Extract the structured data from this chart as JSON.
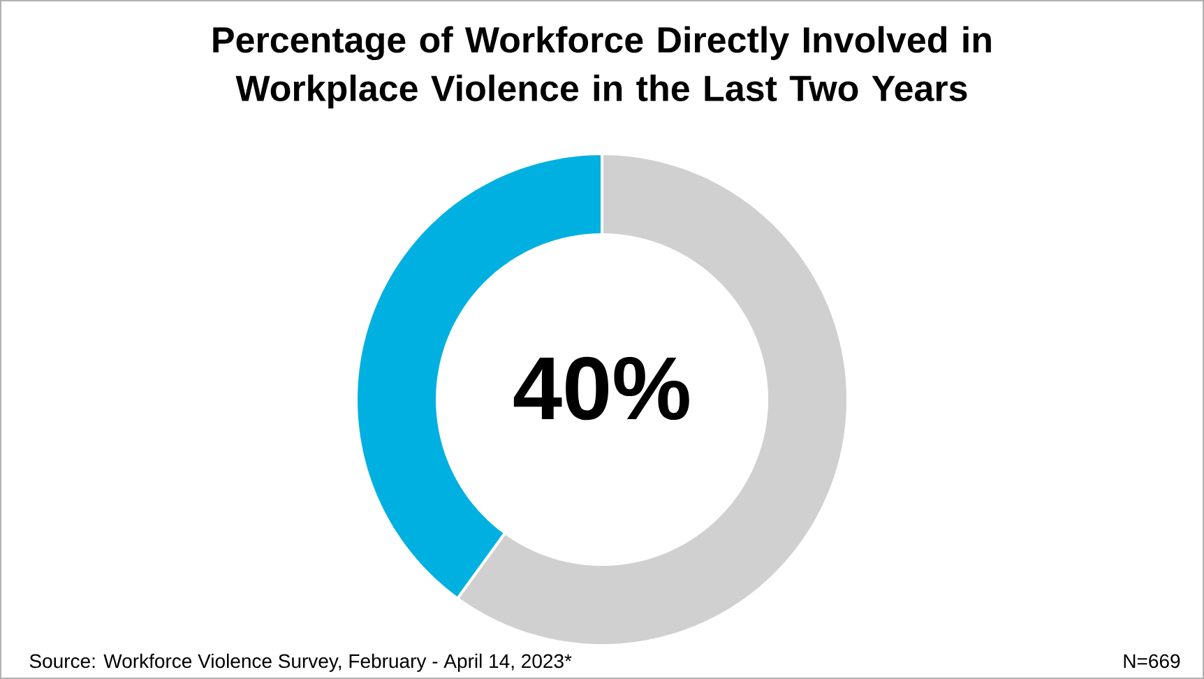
{
  "chart_data": {
    "type": "donut",
    "title": "Percentage of Workforce Directly Involved in Workplace Violence in the Last Two Years",
    "categories": [
      null,
      null
    ],
    "values": [
      40,
      60
    ],
    "colors": [
      "#00b0e0",
      "#d0d0d0"
    ],
    "value_labels": [
      "40%",
      null
    ],
    "annotations": [
      "Source: Workforce Violence Survey, February - April 14, 2023*",
      "N=669"
    ]
  }
}
